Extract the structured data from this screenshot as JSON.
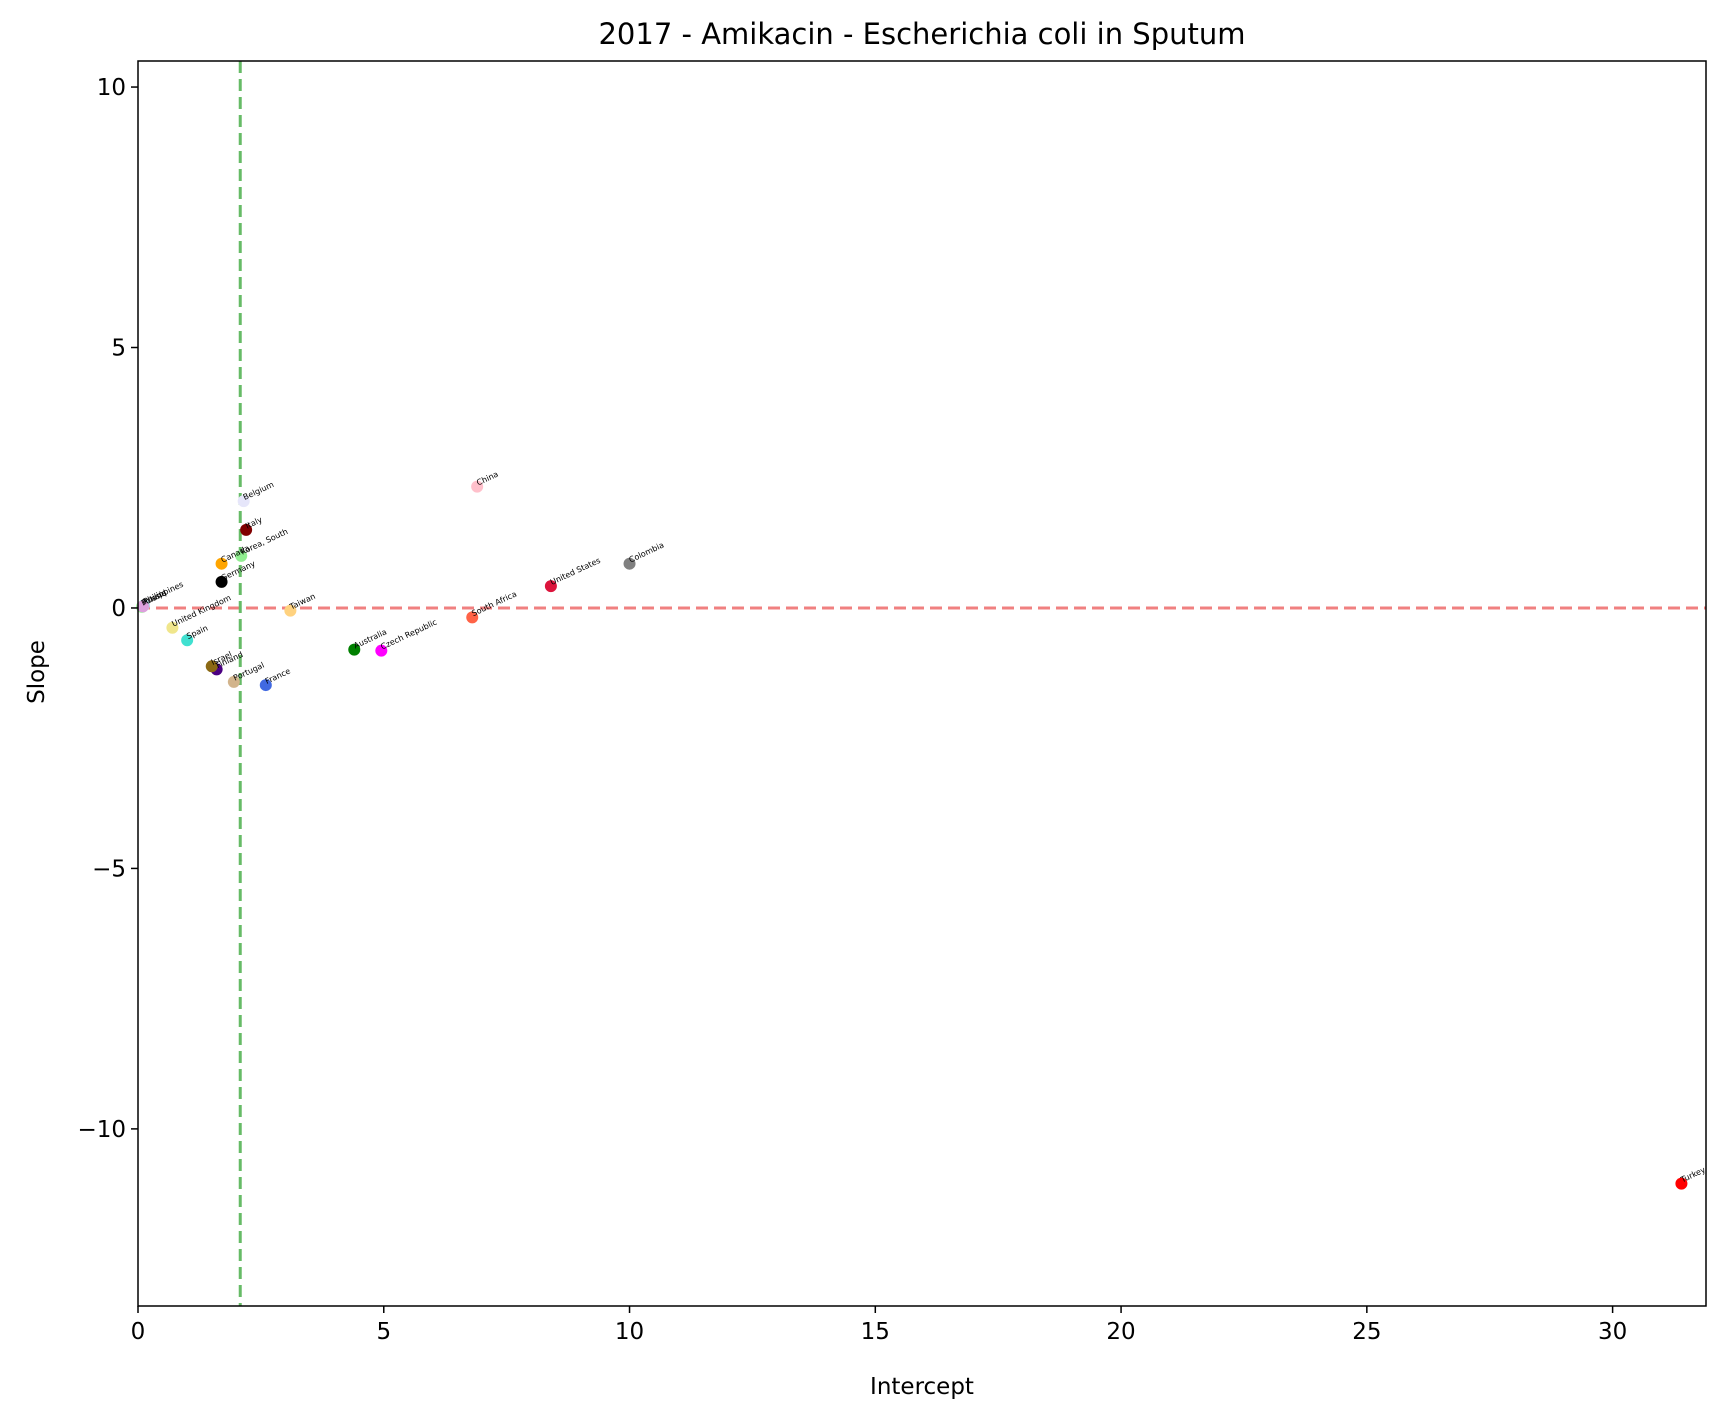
{
  "chart_data": {
    "type": "scatter",
    "title": "2017 - Amikacin - Escherichia coli in Sputum",
    "xlabel": "Intercept",
    "ylabel": "Slope",
    "xlim": [
      0,
      31.9
    ],
    "ylim": [
      -13.4,
      10.5
    ],
    "xticks": [
      0,
      5,
      10,
      15,
      20,
      25,
      30
    ],
    "yticks": [
      -10,
      -5,
      0,
      5,
      10
    ],
    "grid": false,
    "legend": "none",
    "reference_lines": [
      {
        "orientation": "horizontal",
        "value": 0,
        "color": "#f08080",
        "style": "dashed"
      },
      {
        "orientation": "vertical",
        "value": 2.08,
        "color": "#66bb66",
        "style": "dashed"
      }
    ],
    "points": [
      {
        "label": "Turkey",
        "x": 31.4,
        "y": -11.05,
        "color": "#ff0000"
      },
      {
        "label": "Colombia",
        "x": 10.0,
        "y": 0.85,
        "color": "#808080"
      },
      {
        "label": "United States",
        "x": 8.4,
        "y": 0.42,
        "color": "#dc143c"
      },
      {
        "label": "China",
        "x": 6.9,
        "y": 2.33,
        "color": "#ffc0cb"
      },
      {
        "label": "South Africa",
        "x": 6.8,
        "y": -0.18,
        "color": "#ff6347"
      },
      {
        "label": "Czech Republic",
        "x": 4.95,
        "y": -0.82,
        "color": "#ff00ff"
      },
      {
        "label": "Australia",
        "x": 4.4,
        "y": -0.8,
        "color": "#008000"
      },
      {
        "label": "Taiwan",
        "x": 3.1,
        "y": -0.05,
        "color": "#ffd27f"
      },
      {
        "label": "France",
        "x": 2.6,
        "y": -1.48,
        "color": "#4169e1"
      },
      {
        "label": "Belgium",
        "x": 2.15,
        "y": 2.05,
        "color": "#e6e6fa"
      },
      {
        "label": "Italy",
        "x": 2.2,
        "y": 1.5,
        "color": "#800000"
      },
      {
        "label": "Korea, South",
        "x": 2.1,
        "y": 1.0,
        "color": "#90ee90"
      },
      {
        "label": "Canada",
        "x": 1.7,
        "y": 0.85,
        "color": "#ffa500"
      },
      {
        "label": "Germany",
        "x": 1.7,
        "y": 0.5,
        "color": "#000000"
      },
      {
        "label": "Portugal",
        "x": 1.95,
        "y": -1.42,
        "color": "#d2b48c"
      },
      {
        "label": "Finland",
        "x": 1.6,
        "y": -1.18,
        "color": "#4b0082"
      },
      {
        "label": "Israel",
        "x": 1.5,
        "y": -1.12,
        "color": "#8b6914"
      },
      {
        "label": "Spain",
        "x": 1.0,
        "y": -0.62,
        "color": "#40e0d0"
      },
      {
        "label": "United Kingdom",
        "x": 0.7,
        "y": -0.38,
        "color": "#f0e68c"
      },
      {
        "label": "Philippines",
        "x": 0.12,
        "y": 0.05,
        "color": "#add8e6"
      },
      {
        "label": "Poland",
        "x": 0.08,
        "y": 0.02,
        "color": "#98fb98"
      },
      {
        "label": "Russia",
        "x": 0.1,
        "y": 0.03,
        "color": "#dda0dd"
      }
    ]
  }
}
